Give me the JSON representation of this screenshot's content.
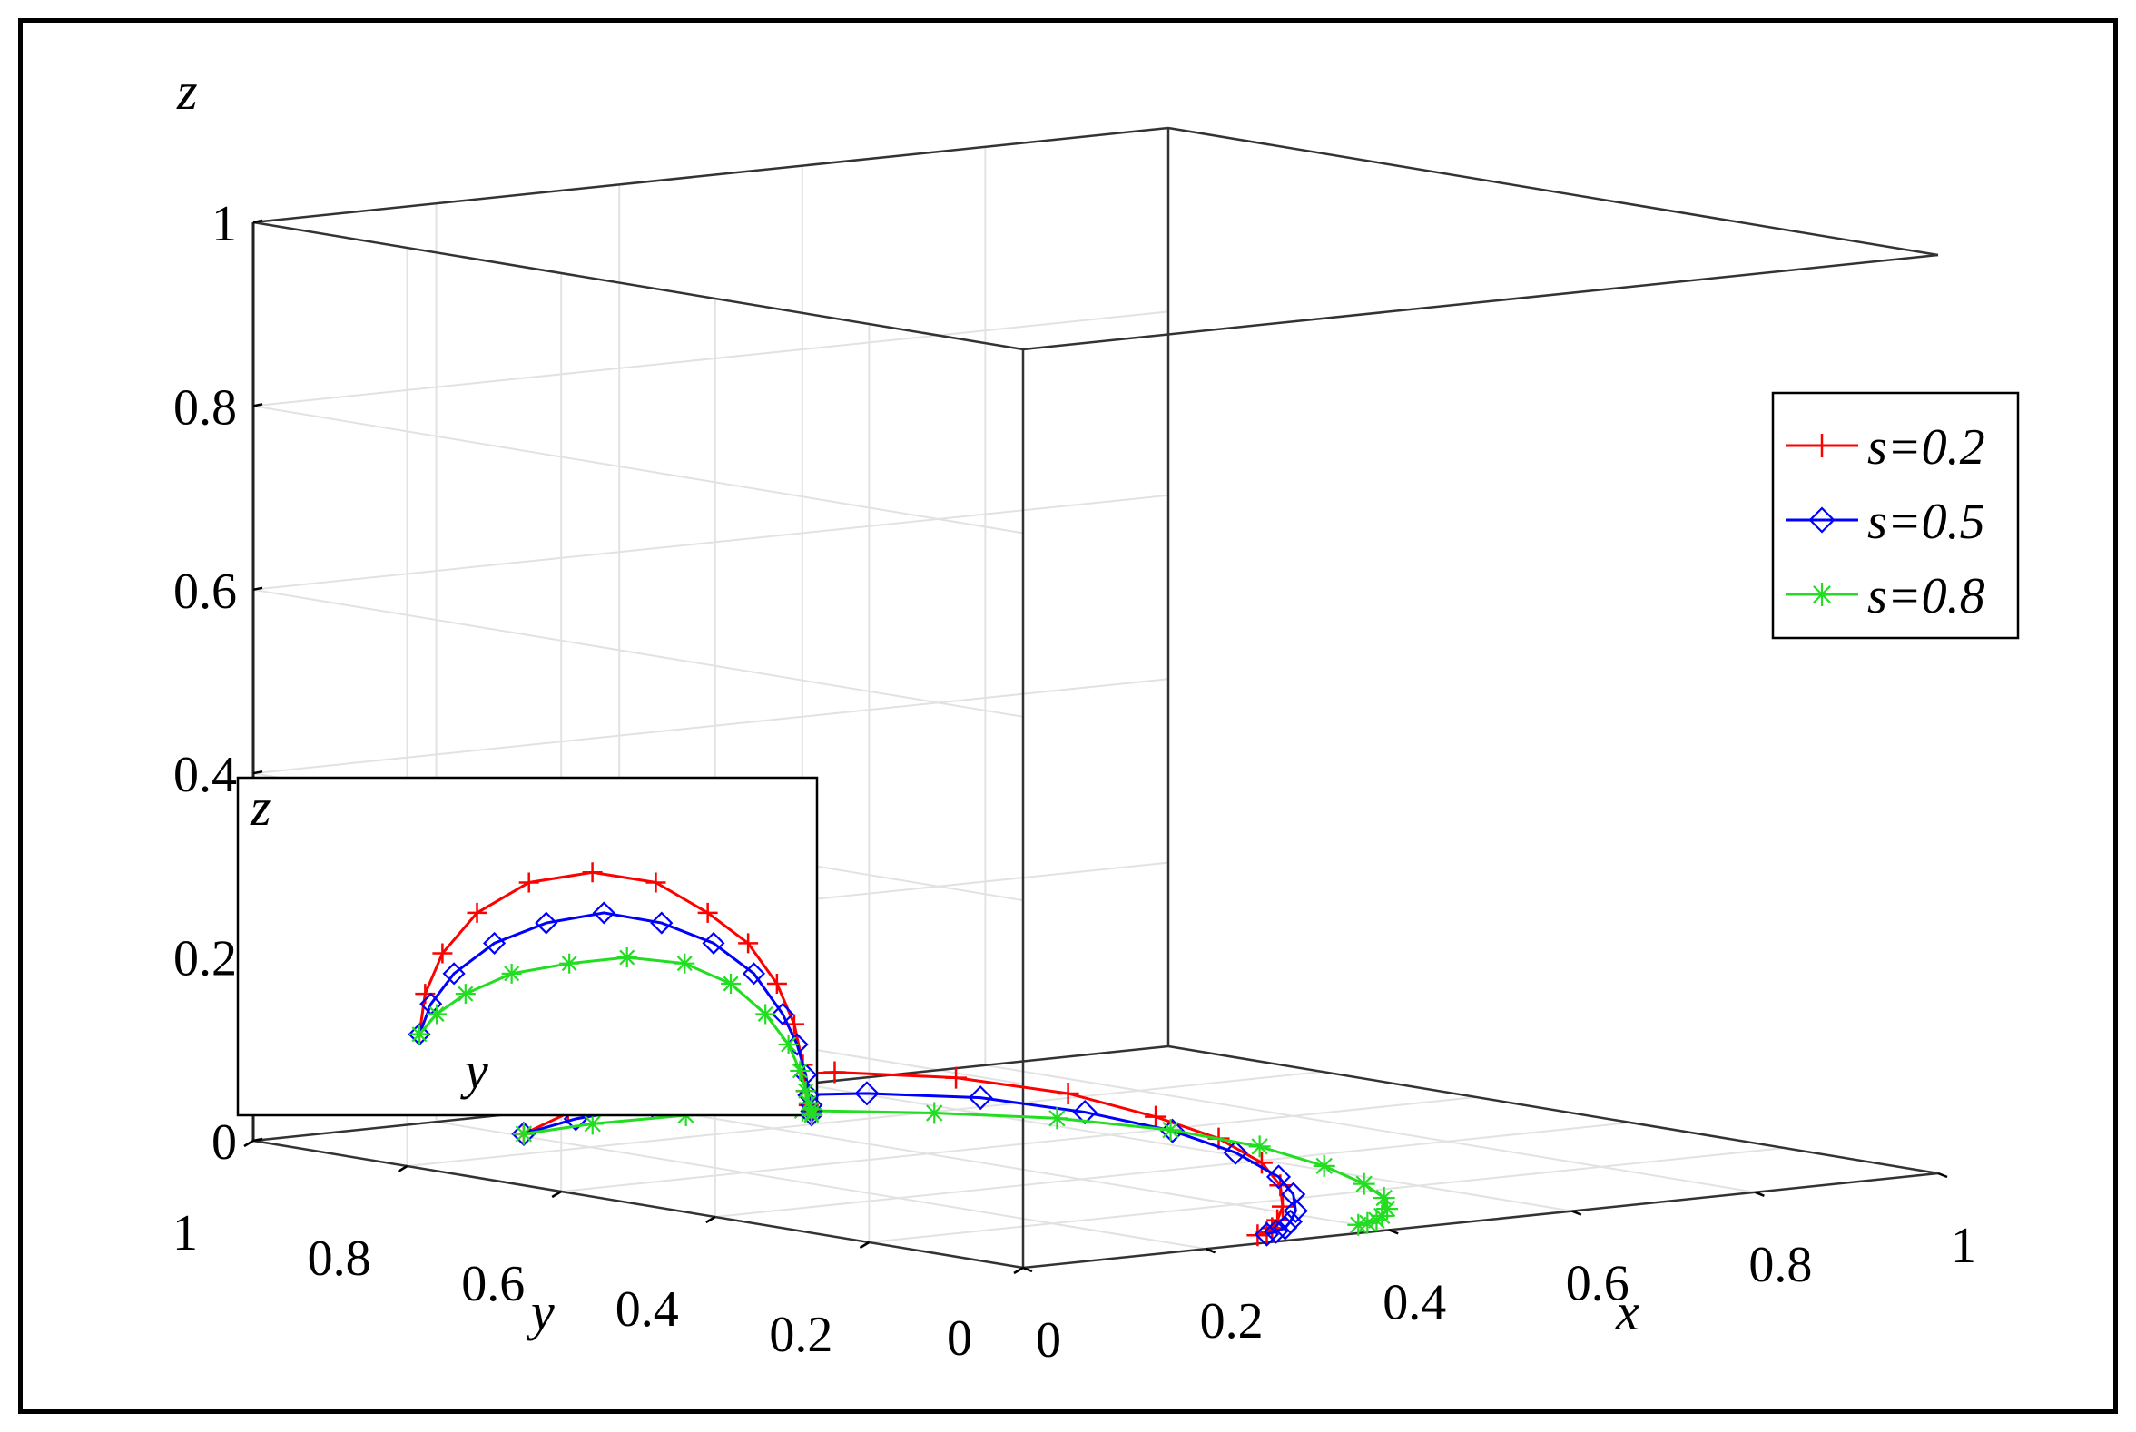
{
  "chart_data": {
    "type": "line3d",
    "xlabel": "x",
    "ylabel": "y",
    "zlabel": "z",
    "xlim": [
      0,
      1
    ],
    "ylim": [
      0,
      1
    ],
    "zlim": [
      0,
      1
    ],
    "xticks": [
      "0",
      "0.2",
      "0.4",
      "0.6",
      "0.8",
      "1"
    ],
    "yticks": [
      "0",
      "0.2",
      "0.4",
      "0.6",
      "0.8",
      "1"
    ],
    "zticks": [
      "0",
      "0.2",
      "0.4",
      "0.6",
      "0.8",
      "1"
    ],
    "grid": true,
    "legend_position": "right",
    "series": [
      {
        "name": "s=0.2",
        "color": "#ff0000",
        "marker": "plus",
        "x": [
          0.06,
          0.1,
          0.14,
          0.19,
          0.24,
          0.28,
          0.31,
          0.33,
          0.34,
          0.345,
          0.34,
          0.33,
          0.32,
          0.31,
          0.3,
          0.29
        ],
        "y": [
          0.72,
          0.71,
          0.68,
          0.62,
          0.53,
          0.42,
          0.31,
          0.22,
          0.15,
          0.1,
          0.07,
          0.055,
          0.05,
          0.045,
          0.04,
          0.04
        ],
        "z": [
          0.04,
          0.06,
          0.08,
          0.1,
          0.115,
          0.12,
          0.115,
          0.1,
          0.085,
          0.065,
          0.045,
          0.025,
          0.012,
          0.005,
          0.002,
          0.0
        ]
      },
      {
        "name": "s=0.5",
        "color": "#0000ff",
        "marker": "diamond",
        "x": [
          0.06,
          0.1,
          0.15,
          0.2,
          0.25,
          0.29,
          0.32,
          0.34,
          0.35,
          0.355,
          0.35,
          0.34,
          0.33,
          0.32,
          0.31,
          0.3
        ],
        "y": [
          0.72,
          0.7,
          0.66,
          0.59,
          0.5,
          0.4,
          0.3,
          0.21,
          0.14,
          0.09,
          0.065,
          0.05,
          0.045,
          0.04,
          0.04,
          0.04
        ],
        "z": [
          0.04,
          0.055,
          0.07,
          0.085,
          0.095,
          0.1,
          0.095,
          0.085,
          0.07,
          0.05,
          0.035,
          0.02,
          0.01,
          0.005,
          0.002,
          0.0
        ]
      },
      {
        "name": "s=0.8",
        "color": "#22dd22",
        "marker": "star",
        "x": [
          0.06,
          0.11,
          0.17,
          0.23,
          0.29,
          0.34,
          0.38,
          0.41,
          0.43,
          0.44,
          0.445,
          0.44,
          0.43,
          0.42,
          0.41,
          0.4
        ],
        "y": [
          0.72,
          0.69,
          0.64,
          0.56,
          0.46,
          0.36,
          0.26,
          0.18,
          0.12,
          0.08,
          0.06,
          0.05,
          0.045,
          0.04,
          0.04,
          0.04
        ],
        "z": [
          0.04,
          0.05,
          0.06,
          0.07,
          0.075,
          0.078,
          0.075,
          0.065,
          0.05,
          0.035,
          0.022,
          0.012,
          0.006,
          0.003,
          0.001,
          0.0
        ]
      }
    ],
    "inset": {
      "view": "y-z projection",
      "xlabel": "y",
      "ylabel": "z"
    }
  }
}
